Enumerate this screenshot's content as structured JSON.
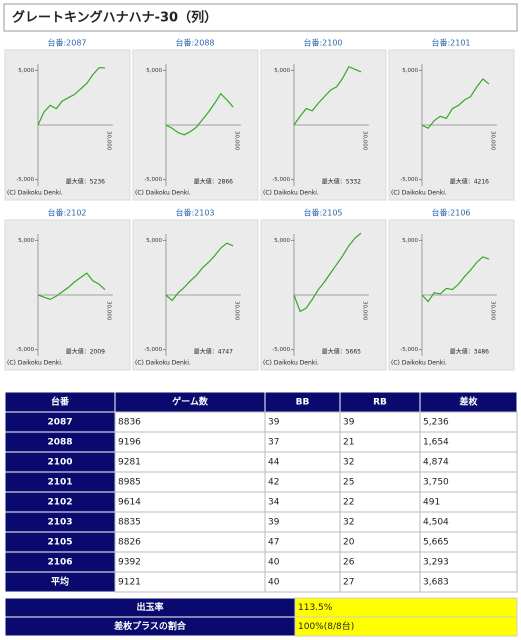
{
  "header": {
    "title": "グレートキングハナハナ-30（列）"
  },
  "graph_ylim": [
    -6500,
    6500
  ],
  "graphs": [
    {
      "label": "台番:2087",
      "yticks": [
        {
          "value": 5000,
          "label": "5,000"
        },
        {
          "value": -5000,
          "label": "-5,000"
        }
      ],
      "x_label": "30,000",
      "max_label": "最大値：5236",
      "copyright": "(C) Daikoku Denki.",
      "values": [
        0,
        1200,
        1800,
        1500,
        2200,
        2500,
        2800,
        3300,
        3800,
        4600,
        5236,
        5236
      ]
    },
    {
      "label": "台番:2088",
      "yticks": [
        {
          "value": 5000,
          "label": "5,000"
        },
        {
          "value": -5000,
          "label": "-5,000"
        }
      ],
      "x_label": "30,000",
      "max_label": "最大値：2866",
      "copyright": "(C) Daikoku Denki.",
      "values": [
        0,
        -300,
        -700,
        -900,
        -600,
        -200,
        500,
        1200,
        2000,
        2866,
        2300,
        1654
      ]
    },
    {
      "label": "台番:2100",
      "yticks": [
        {
          "value": 5000,
          "label": "5,000"
        },
        {
          "value": -5000,
          "label": "-5,000"
        }
      ],
      "x_label": "30,000",
      "max_label": "最大値：5332",
      "copyright": "(C) Daikoku Denki.",
      "values": [
        0,
        800,
        1500,
        1300,
        2000,
        2600,
        3200,
        3500,
        4300,
        5332,
        5100,
        4874
      ]
    },
    {
      "label": "台番:2101",
      "yticks": [
        {
          "value": 5000,
          "label": "5,000"
        },
        {
          "value": -5000,
          "label": "-5,000"
        }
      ],
      "x_label": "30,000",
      "max_label": "最大値：4216",
      "copyright": "(C) Daikoku Denki.",
      "values": [
        0,
        -300,
        400,
        800,
        600,
        1500,
        1800,
        2300,
        2600,
        3500,
        4216,
        3750
      ]
    },
    {
      "label": "台番:2102",
      "yticks": [
        {
          "value": 5000,
          "label": "5,000"
        },
        {
          "value": -5000,
          "label": "-5,000"
        }
      ],
      "x_label": "30,000",
      "max_label": "最大値：2009",
      "copyright": "(C) Daikoku Denki.",
      "values": [
        0,
        -200,
        -400,
        -100,
        300,
        700,
        1200,
        1600,
        2009,
        1300,
        1000,
        491
      ]
    },
    {
      "label": "台番:2103",
      "yticks": [
        {
          "value": 5000,
          "label": "5,000"
        },
        {
          "value": -5000,
          "label": "-5,000"
        }
      ],
      "x_label": "30,000",
      "max_label": "最大値：4747",
      "copyright": "(C) Daikoku Denki.",
      "values": [
        0,
        -500,
        200,
        700,
        1300,
        1800,
        2500,
        3000,
        3600,
        4300,
        4747,
        4504
      ]
    },
    {
      "label": "台番:2105",
      "yticks": [
        {
          "value": 5000,
          "label": "5,000"
        },
        {
          "value": -5000,
          "label": "-5,000"
        }
      ],
      "x_label": "30,000",
      "max_label": "最大値：5665",
      "copyright": "(C) Daikoku Denki.",
      "values": [
        0,
        -1500,
        -1200,
        -400,
        500,
        1200,
        2000,
        2800,
        3600,
        4500,
        5200,
        5665
      ]
    },
    {
      "label": "台番:2106",
      "yticks": [
        {
          "value": 5000,
          "label": "5,000"
        },
        {
          "value": -5000,
          "label": "-5,000"
        }
      ],
      "x_label": "30,000",
      "max_label": "最大値：3486",
      "copyright": "(C) Daikoku Denki.",
      "values": [
        0,
        -600,
        200,
        100,
        600,
        500,
        1000,
        1700,
        2300,
        3000,
        3486,
        3293
      ]
    }
  ],
  "table": {
    "columns": [
      "台番",
      "ゲーム数",
      "BB",
      "RB",
      "差枚"
    ],
    "rows": [
      [
        "2087",
        "8836",
        "39",
        "39",
        "5,236"
      ],
      [
        "2088",
        "9196",
        "37",
        "21",
        "1,654"
      ],
      [
        "2100",
        "9281",
        "44",
        "32",
        "4,874"
      ],
      [
        "2101",
        "8985",
        "42",
        "25",
        "3,750"
      ],
      [
        "2102",
        "9614",
        "34",
        "22",
        "491"
      ],
      [
        "2103",
        "8835",
        "39",
        "32",
        "4,504"
      ],
      [
        "2105",
        "8826",
        "47",
        "20",
        "5,665"
      ],
      [
        "2106",
        "9392",
        "40",
        "26",
        "3,293"
      ],
      [
        "平均",
        "9121",
        "40",
        "27",
        "3,683"
      ]
    ]
  },
  "summary": [
    {
      "label": "出玉率",
      "value": "113.5%"
    },
    {
      "label": "差枚プラスの割合",
      "value": "100%(8/8台)"
    }
  ]
}
